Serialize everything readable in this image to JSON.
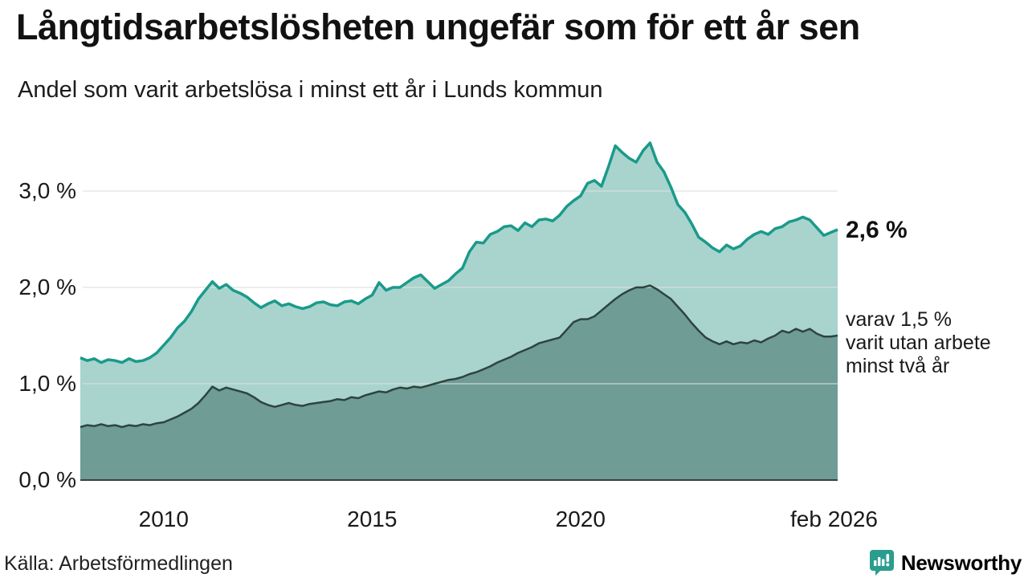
{
  "header": {
    "title": "Långtidsarbetslösheten ungefär som för ett år sen",
    "subtitle": "Andel som varit arbetslösa i minst ett år i Lunds kommun"
  },
  "colors": {
    "total_line": "#1a9a8b",
    "total_fill": "#a8d4cd",
    "two_year_line": "#2e443f",
    "two_year_fill": "#6f9c95",
    "baseline": "#37423f",
    "gridline": "#dedede",
    "brand_teal": "#2a9d8f",
    "text_dark": "#1a1a1a"
  },
  "annotations": {
    "latest_value": "2,6 %",
    "secondary_lines": [
      "varav 1,5 %",
      "varit utan arbete",
      "minst två år"
    ]
  },
  "footer": {
    "source": "Källa: Arbetsförmedlingen",
    "brand": "Newsworthy"
  },
  "chart_data": {
    "type": "area",
    "title": "Andel som varit arbetslösa i minst ett år i Lunds kommun",
    "x_unit": "year (monthly series)",
    "y_unit": "%",
    "x_start": 2008.0,
    "x_end": 2026.17,
    "ylim": [
      0,
      3.6
    ],
    "grid": "horizontal",
    "y_ticks": [
      {
        "value": 0,
        "label": "0,0 %"
      },
      {
        "value": 1,
        "label": "1,0 %"
      },
      {
        "value": 2,
        "label": "2,0 %"
      },
      {
        "value": 3,
        "label": "3,0 %"
      }
    ],
    "x_ticks": [
      {
        "value": 2010,
        "label": "2010"
      },
      {
        "value": 2015,
        "label": "2015"
      },
      {
        "value": 2020,
        "label": "2020"
      },
      {
        "value": 2026.083,
        "label": "feb 2026"
      }
    ],
    "series": [
      {
        "name": "arbetslösa minst ett år (totalt)",
        "end_label": "2,6 %",
        "latest": 2.6,
        "values": [
          1.27,
          1.24,
          1.26,
          1.22,
          1.25,
          1.24,
          1.22,
          1.26,
          1.23,
          1.24,
          1.27,
          1.32,
          1.4,
          1.48,
          1.58,
          1.65,
          1.75,
          1.88,
          1.97,
          2.06,
          1.99,
          2.03,
          1.97,
          1.94,
          1.9,
          1.84,
          1.79,
          1.83,
          1.86,
          1.81,
          1.83,
          1.8,
          1.78,
          1.8,
          1.84,
          1.85,
          1.82,
          1.81,
          1.85,
          1.86,
          1.83,
          1.88,
          1.92,
          2.05,
          1.97,
          2.0,
          2.0,
          2.05,
          2.1,
          2.13,
          2.06,
          1.99,
          2.03,
          2.07,
          2.14,
          2.2,
          2.37,
          2.47,
          2.46,
          2.55,
          2.58,
          2.63,
          2.64,
          2.59,
          2.67,
          2.63,
          2.7,
          2.71,
          2.69,
          2.75,
          2.84,
          2.9,
          2.95,
          3.08,
          3.11,
          3.05,
          3.25,
          3.47,
          3.4,
          3.34,
          3.3,
          3.42,
          3.5,
          3.3,
          3.2,
          3.04,
          2.86,
          2.78,
          2.66,
          2.52,
          2.47,
          2.41,
          2.37,
          2.44,
          2.4,
          2.43,
          2.5,
          2.55,
          2.58,
          2.55,
          2.61,
          2.63,
          2.68,
          2.7,
          2.73,
          2.7,
          2.62,
          2.54,
          2.57,
          2.6
        ]
      },
      {
        "name": "varav utan arbete minst två år",
        "latest": 1.5,
        "values": [
          0.55,
          0.57,
          0.56,
          0.58,
          0.56,
          0.57,
          0.55,
          0.57,
          0.56,
          0.58,
          0.57,
          0.59,
          0.6,
          0.63,
          0.66,
          0.7,
          0.74,
          0.8,
          0.88,
          0.97,
          0.93,
          0.96,
          0.94,
          0.92,
          0.9,
          0.86,
          0.81,
          0.78,
          0.76,
          0.78,
          0.8,
          0.78,
          0.77,
          0.79,
          0.8,
          0.81,
          0.82,
          0.84,
          0.83,
          0.86,
          0.85,
          0.88,
          0.9,
          0.92,
          0.91,
          0.94,
          0.96,
          0.95,
          0.97,
          0.96,
          0.98,
          1.0,
          1.02,
          1.04,
          1.05,
          1.07,
          1.1,
          1.12,
          1.15,
          1.18,
          1.22,
          1.25,
          1.28,
          1.32,
          1.35,
          1.38,
          1.42,
          1.44,
          1.46,
          1.48,
          1.56,
          1.64,
          1.67,
          1.67,
          1.7,
          1.76,
          1.82,
          1.88,
          1.93,
          1.97,
          2.0,
          2.0,
          2.02,
          1.98,
          1.93,
          1.88,
          1.8,
          1.72,
          1.63,
          1.55,
          1.48,
          1.44,
          1.41,
          1.44,
          1.41,
          1.43,
          1.42,
          1.45,
          1.43,
          1.47,
          1.5,
          1.55,
          1.53,
          1.57,
          1.54,
          1.57,
          1.52,
          1.49,
          1.49,
          1.5
        ]
      }
    ]
  }
}
